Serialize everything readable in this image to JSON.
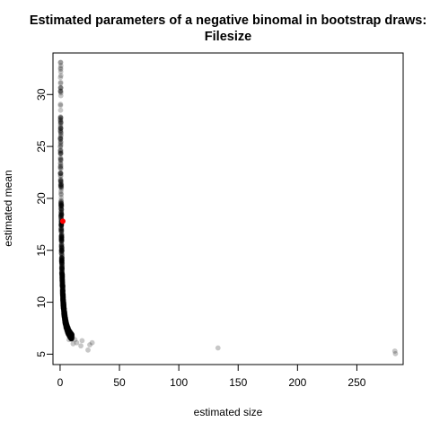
{
  "chart_data": {
    "type": "scatter",
    "title": "Estimated parameters of a negative binomal in bootstrap draws:",
    "subtitle": "Filesize",
    "xlabel": "estimated size",
    "ylabel": "estimated mean",
    "xlim": [
      -6,
      289
    ],
    "ylim": [
      4.0,
      34.0
    ],
    "x_ticks": [
      0,
      50,
      100,
      150,
      200,
      250
    ],
    "y_ticks": [
      5,
      10,
      15,
      20,
      25,
      30
    ],
    "grid": false,
    "legend": "none",
    "point_color": "#000000",
    "point_opacity": 0.22,
    "highlight_color": "#ff0000",
    "highlight_point": {
      "x": 2.3,
      "y": 17.8
    },
    "main_curve": {
      "description_units": "mean = a + b / size",
      "a": 5.4,
      "b": 12.4,
      "size_range": [
        0.4,
        10.0
      ]
    },
    "outliers": [
      {
        "x": 5.8,
        "y": 7.6
      },
      {
        "x": 7.5,
        "y": 6.4
      },
      {
        "x": 9.0,
        "y": 6.9
      },
      {
        "x": 11.0,
        "y": 6.0
      },
      {
        "x": 12.5,
        "y": 6.4
      },
      {
        "x": 14.0,
        "y": 6.1
      },
      {
        "x": 17.5,
        "y": 5.8
      },
      {
        "x": 18.5,
        "y": 6.3
      },
      {
        "x": 23.5,
        "y": 5.4
      },
      {
        "x": 25.0,
        "y": 5.9
      },
      {
        "x": 27.0,
        "y": 6.1
      },
      {
        "x": 133.0,
        "y": 5.6
      },
      {
        "x": 282.0,
        "y": 5.3
      },
      {
        "x": 282.5,
        "y": 5.05
      }
    ]
  }
}
